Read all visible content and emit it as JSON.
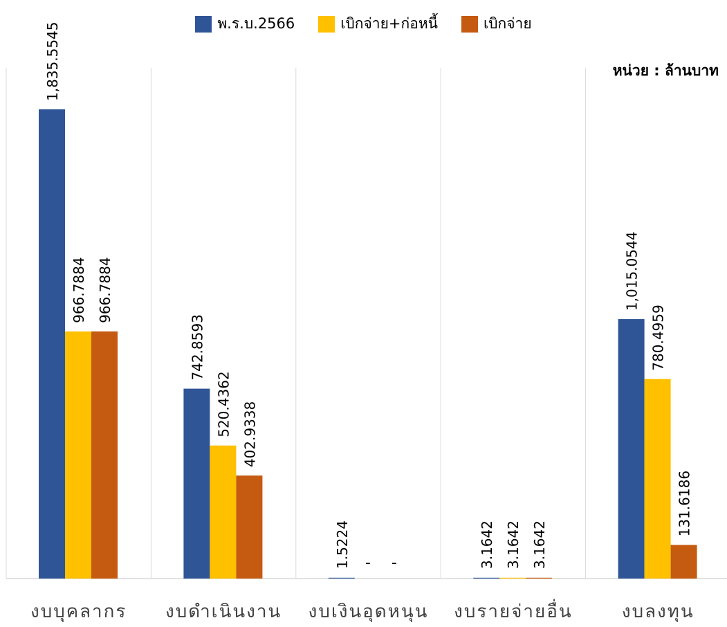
{
  "chart_data": {
    "type": "bar",
    "unit_label": "หน่วย : ล้านบาท",
    "categories": [
      "งบบุคลากร",
      "งบดำเนินงาน",
      "งบเงินอุดหนุน",
      "งบรายจ่ายอื่น",
      "งบลงทุน"
    ],
    "ylim": [
      0,
      2000
    ],
    "grid": false,
    "legend_position": "top-center",
    "series": [
      {
        "name": "พ.ร.บ.2566",
        "color": "#2F5597",
        "values": [
          1835.5545,
          742.8593,
          1.5224,
          3.1642,
          1015.0544
        ],
        "labels": [
          "1,835.5545",
          "742.8593",
          "1.5224",
          "3.1642",
          "1,015.0544"
        ]
      },
      {
        "name": "เบิกจ่าย+ก่อหนี้",
        "color": "#FFC000",
        "values": [
          966.7884,
          520.4362,
          0,
          3.1642,
          780.4959
        ],
        "labels": [
          "966.7884",
          "520.4362",
          "-",
          "3.1642",
          "780.4959"
        ]
      },
      {
        "name": "เบิกจ่าย",
        "color": "#C55A11",
        "values": [
          966.7884,
          402.9338,
          0,
          3.1642,
          131.6186
        ],
        "labels": [
          "966.7884",
          "402.9338",
          "-",
          "3.1642",
          "131.6186"
        ]
      }
    ]
  }
}
